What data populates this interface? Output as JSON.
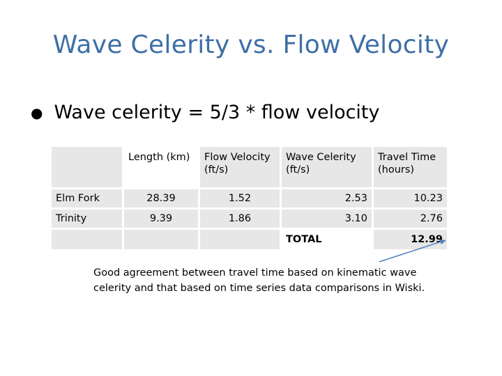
{
  "slide": {
    "title": "Wave Celerity vs. Flow Velocity",
    "bullet": "Wave celerity = 5/3 * flow velocity"
  },
  "table": {
    "headers": [
      "",
      "Length (km)",
      "Flow Velocity (ft/s)",
      "Wave Celerity (ft/s)",
      "Travel Time (hours)"
    ],
    "rows": [
      [
        "Elm Fork",
        "28.39",
        "1.52",
        "2.53",
        "10.23"
      ],
      [
        "Trinity",
        "9.39",
        "1.86",
        "3.10",
        "2.76"
      ]
    ],
    "total_label": "TOTAL",
    "total_value": "12.99"
  },
  "note": "Good agreement between travel time based on kinematic wave celerity and that based on time series data comparisons in Wiski.",
  "colors": {
    "title": "#3e6fa6",
    "arrow": "#4f81bd",
    "cell_shade": "#e7e7e7"
  }
}
